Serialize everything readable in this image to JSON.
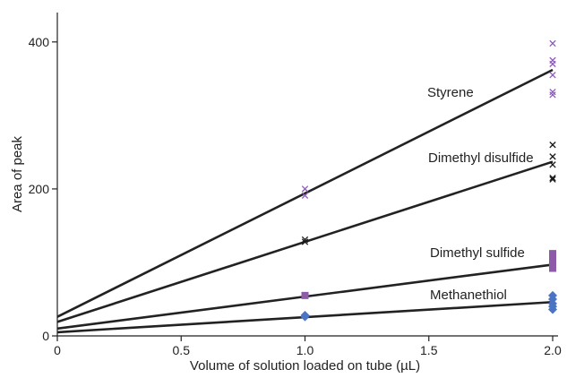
{
  "chart_data": {
    "type": "scatter",
    "title": "",
    "xlabel": "Volume of solution loaded on tube (µL)",
    "ylabel": "Area of peak",
    "xlim": [
      0,
      2.0
    ],
    "ylim": [
      0,
      440
    ],
    "x_ticks": [
      0,
      0.5,
      1.0,
      1.5,
      2.0
    ],
    "x_tick_labels": [
      "0",
      "0.5",
      "1.0",
      "1.5",
      "2.0"
    ],
    "y_ticks": [
      0,
      200,
      400
    ],
    "y_tick_labels": [
      "0",
      "200",
      "400"
    ],
    "grid": false,
    "legend": "none (series labelled directly on lines)",
    "series": [
      {
        "name": "Styrene",
        "marker": "x",
        "color": "#8e5bbf",
        "points": [
          [
            1.0,
            200
          ],
          [
            1.0,
            191
          ],
          [
            2.0,
            398
          ],
          [
            2.0,
            375
          ],
          [
            2.0,
            370
          ],
          [
            2.0,
            355
          ],
          [
            2.0,
            332
          ],
          [
            2.0,
            328
          ]
        ],
        "fit": [
          [
            0,
            26
          ],
          [
            2.0,
            362
          ]
        ]
      },
      {
        "name": "Dimethyl disulfide",
        "marker": "x",
        "color": "#1a1a1a",
        "points": [
          [
            1.0,
            131
          ],
          [
            1.0,
            128
          ],
          [
            2.0,
            260
          ],
          [
            2.0,
            244
          ],
          [
            2.0,
            233
          ],
          [
            2.0,
            215
          ],
          [
            2.0,
            213
          ]
        ],
        "fit": [
          [
            0,
            19
          ],
          [
            2.0,
            237
          ]
        ]
      },
      {
        "name": "Dimethyl sulfide",
        "marker": "square",
        "color": "#8e5ba8",
        "points": [
          [
            1.0,
            55
          ],
          [
            2.0,
            112
          ],
          [
            2.0,
            103
          ],
          [
            2.0,
            96
          ],
          [
            2.0,
            92
          ]
        ],
        "fit": [
          [
            0,
            10
          ],
          [
            2.0,
            97
          ]
        ]
      },
      {
        "name": "Methanethiol",
        "marker": "diamond",
        "color": "#4a74c4",
        "points": [
          [
            1.0,
            28
          ],
          [
            1.0,
            26
          ],
          [
            2.0,
            55
          ],
          [
            2.0,
            50
          ],
          [
            2.0,
            44
          ],
          [
            2.0,
            40
          ],
          [
            2.0,
            36
          ]
        ],
        "fit": [
          [
            0,
            5
          ],
          [
            2.0,
            46
          ]
        ]
      }
    ]
  }
}
